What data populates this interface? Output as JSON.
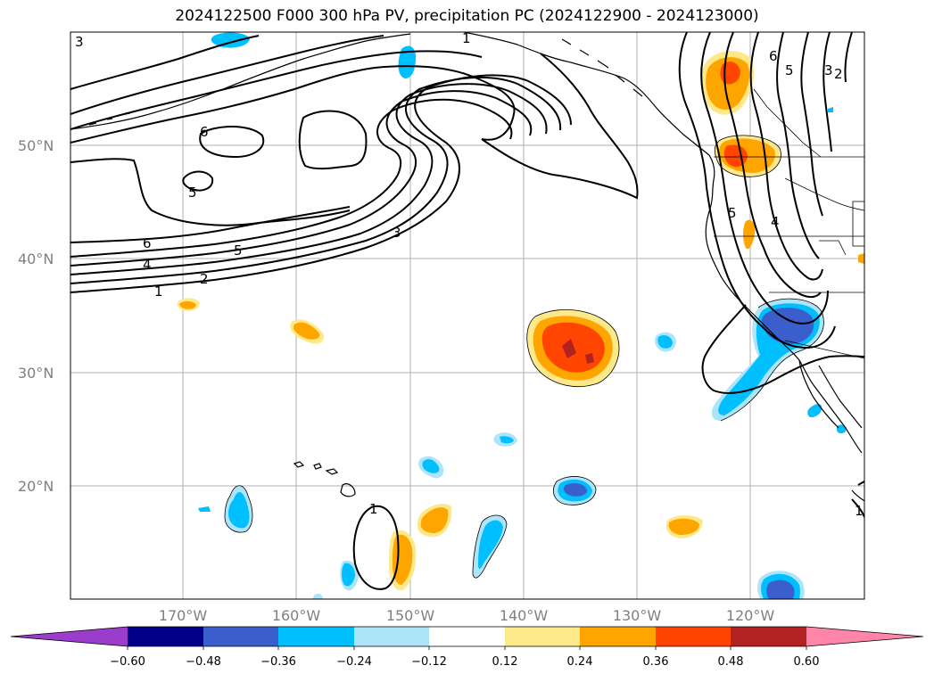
{
  "title": "2024122500 F000 300 hPa PV, precipitation PC (2024122900 - 2024123000)",
  "lat_labels": [
    "50°N",
    "40°N",
    "30°N",
    "20°N"
  ],
  "lon_labels": [
    "170°W",
    "160°W",
    "150°W",
    "140°W",
    "130°W",
    "120°W"
  ],
  "colorbar": {
    "ticks": [
      "−0.60",
      "−0.48",
      "−0.36",
      "−0.24",
      "−0.12",
      "0.12",
      "0.24",
      "0.36",
      "0.48",
      "0.60"
    ],
    "colors": {
      "below_min": "#9c3ccc",
      "neg_060_048": "#00008b",
      "neg_048_036": "#3a5fcd",
      "neg_036_024": "#00bfff",
      "neg_024_012": "#aee4fa",
      "neutral": "#ffffff",
      "pos_012_024": "#fde98a",
      "pos_024_036": "#ffa500",
      "pos_036_048": "#ff4500",
      "pos_048_060": "#b22222",
      "above_max": "#ff85a8"
    }
  },
  "pv_contour_labels": [
    "1",
    "2",
    "3",
    "4",
    "5",
    "6"
  ]
}
